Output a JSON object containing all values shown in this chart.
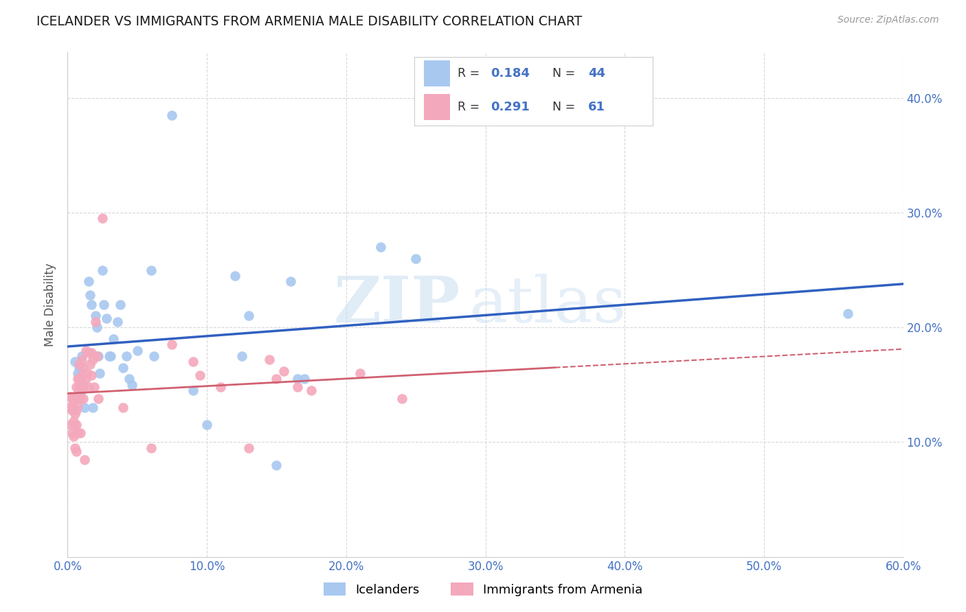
{
  "title": "ICELANDER VS IMMIGRANTS FROM ARMENIA MALE DISABILITY CORRELATION CHART",
  "source": "Source: ZipAtlas.com",
  "ylabel": "Male Disability",
  "watermark_line1": "ZIP",
  "watermark_line2": "atlas",
  "legend1_r": "0.184",
  "legend1_n": "44",
  "legend2_r": "0.291",
  "legend2_n": "61",
  "legend1_label": "Icelanders",
  "legend2_label": "Immigrants from Armenia",
  "xlim": [
    0.0,
    0.6
  ],
  "ylim": [
    0.0,
    0.44
  ],
  "yticks": [
    0.1,
    0.2,
    0.3,
    0.4
  ],
  "xticks": [
    0.0,
    0.1,
    0.2,
    0.3,
    0.4,
    0.5,
    0.6
  ],
  "color_blue": "#a8c8f0",
  "color_pink": "#f4a8bc",
  "color_line_blue": "#3060c0",
  "color_line_pink": "#d06070",
  "axis_tick_color": "#4472c4",
  "blue_x": [
    0.005,
    0.007,
    0.008,
    0.009,
    0.01,
    0.01,
    0.011,
    0.012,
    0.015,
    0.016,
    0.017,
    0.018,
    0.02,
    0.021,
    0.022,
    0.023,
    0.025,
    0.026,
    0.028,
    0.03,
    0.031,
    0.033,
    0.036,
    0.038,
    0.04,
    0.042,
    0.044,
    0.046,
    0.05,
    0.06,
    0.062,
    0.075,
    0.09,
    0.1,
    0.12,
    0.125,
    0.13,
    0.15,
    0.16,
    0.165,
    0.17,
    0.225,
    0.25,
    0.56
  ],
  "blue_y": [
    0.17,
    0.16,
    0.165,
    0.155,
    0.175,
    0.145,
    0.15,
    0.13,
    0.24,
    0.228,
    0.22,
    0.13,
    0.21,
    0.2,
    0.175,
    0.16,
    0.25,
    0.22,
    0.208,
    0.175,
    0.175,
    0.19,
    0.205,
    0.22,
    0.165,
    0.175,
    0.155,
    0.15,
    0.18,
    0.25,
    0.175,
    0.385,
    0.145,
    0.115,
    0.245,
    0.175,
    0.21,
    0.08,
    0.24,
    0.155,
    0.155,
    0.27,
    0.26,
    0.212
  ],
  "pink_x": [
    0.002,
    0.002,
    0.002,
    0.003,
    0.003,
    0.003,
    0.003,
    0.004,
    0.004,
    0.004,
    0.005,
    0.005,
    0.005,
    0.006,
    0.006,
    0.006,
    0.006,
    0.006,
    0.007,
    0.007,
    0.007,
    0.007,
    0.008,
    0.008,
    0.008,
    0.009,
    0.009,
    0.01,
    0.01,
    0.011,
    0.011,
    0.011,
    0.012,
    0.013,
    0.013,
    0.014,
    0.015,
    0.015,
    0.016,
    0.017,
    0.017,
    0.018,
    0.019,
    0.02,
    0.021,
    0.022,
    0.025,
    0.04,
    0.06,
    0.075,
    0.09,
    0.095,
    0.11,
    0.13,
    0.145,
    0.15,
    0.155,
    0.165,
    0.175,
    0.21,
    0.24
  ],
  "pink_y": [
    0.14,
    0.13,
    0.115,
    0.138,
    0.132,
    0.128,
    0.108,
    0.128,
    0.118,
    0.105,
    0.125,
    0.115,
    0.095,
    0.148,
    0.138,
    0.128,
    0.115,
    0.092,
    0.155,
    0.142,
    0.132,
    0.108,
    0.168,
    0.155,
    0.148,
    0.138,
    0.108,
    0.172,
    0.158,
    0.165,
    0.148,
    0.138,
    0.085,
    0.18,
    0.155,
    0.16,
    0.178,
    0.148,
    0.168,
    0.178,
    0.158,
    0.172,
    0.148,
    0.205,
    0.175,
    0.138,
    0.295,
    0.13,
    0.095,
    0.185,
    0.17,
    0.158,
    0.148,
    0.095,
    0.172,
    0.155,
    0.162,
    0.148,
    0.145,
    0.16,
    0.138
  ],
  "pink_line_x_end": 0.35
}
